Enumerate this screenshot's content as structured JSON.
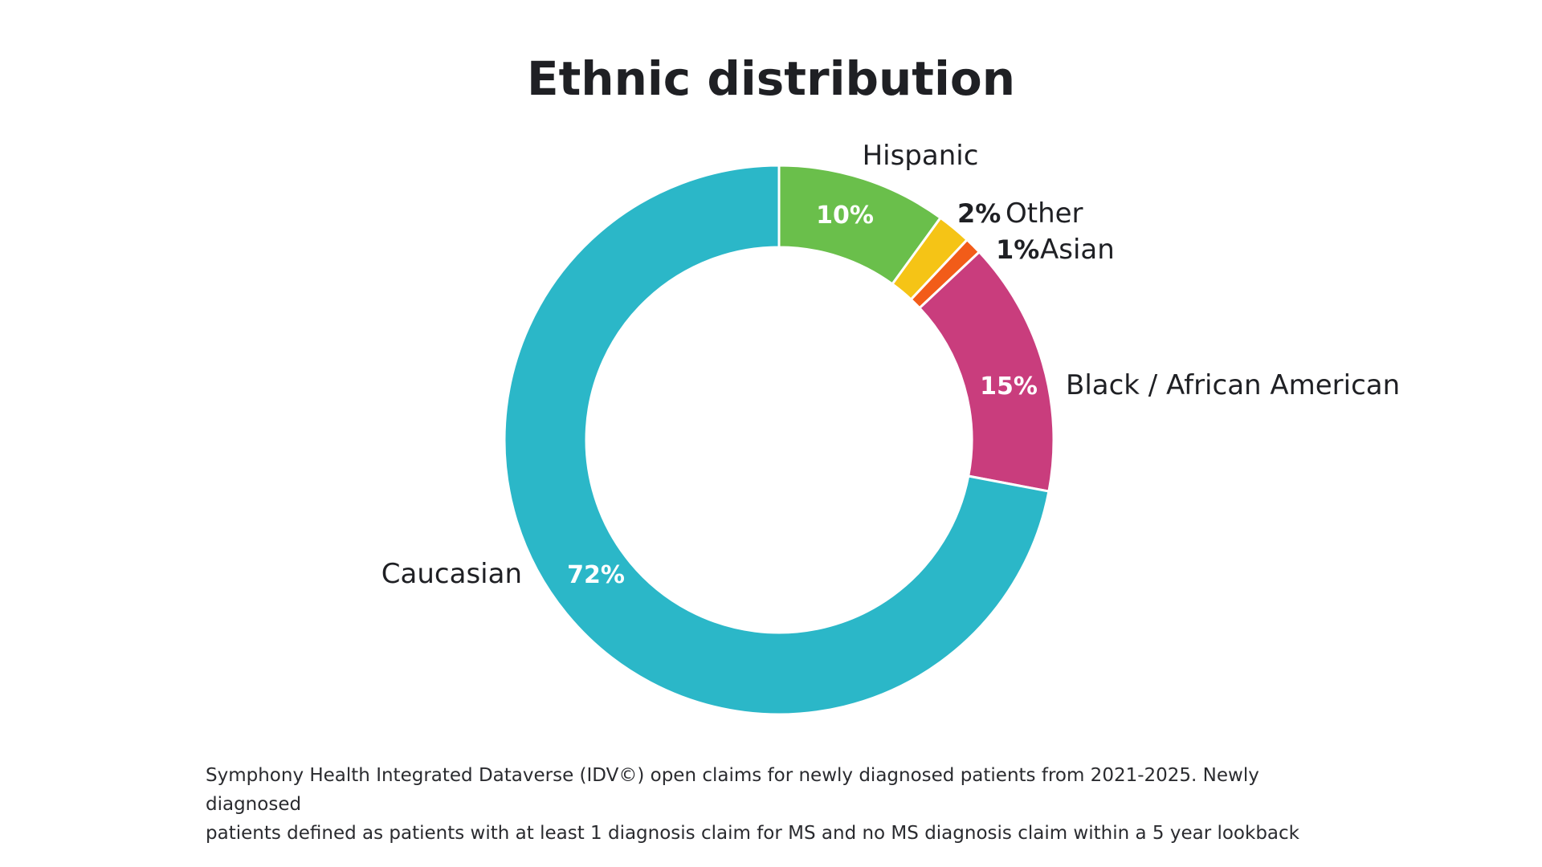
{
  "chart_data": {
    "type": "pie",
    "title": "Ethnic distribution",
    "donut": true,
    "start_angle_deg": 0,
    "direction": "clockwise",
    "segments": [
      {
        "label": "Hispanic",
        "value": 10,
        "value_label": "10%",
        "color": "#6abf4b",
        "label_style": "inside"
      },
      {
        "label": "Other",
        "value": 2,
        "value_label": "2%",
        "color": "#f5c416",
        "label_style": "outside"
      },
      {
        "label": "Asian",
        "value": 1,
        "value_label": "1%",
        "color": "#f25c19",
        "label_style": "outside"
      },
      {
        "label": "Black / African American",
        "value": 15,
        "value_label": "15%",
        "color": "#c93d7d",
        "label_style": "inside"
      },
      {
        "label": "Caucasian",
        "value": 72,
        "value_label": "72%",
        "color": "#2bb7c8",
        "label_style": "inside"
      }
    ]
  },
  "footnote": {
    "line1": "Symphony Health Integrated Dataverse (IDV©) open claims for newly diagnosed patients from 2021-2025.  Newly diagnosed",
    "line2": "patients defined as patients with at least 1 diagnosis claim for MS and no MS diagnosis claim within a 5 year lookback"
  }
}
